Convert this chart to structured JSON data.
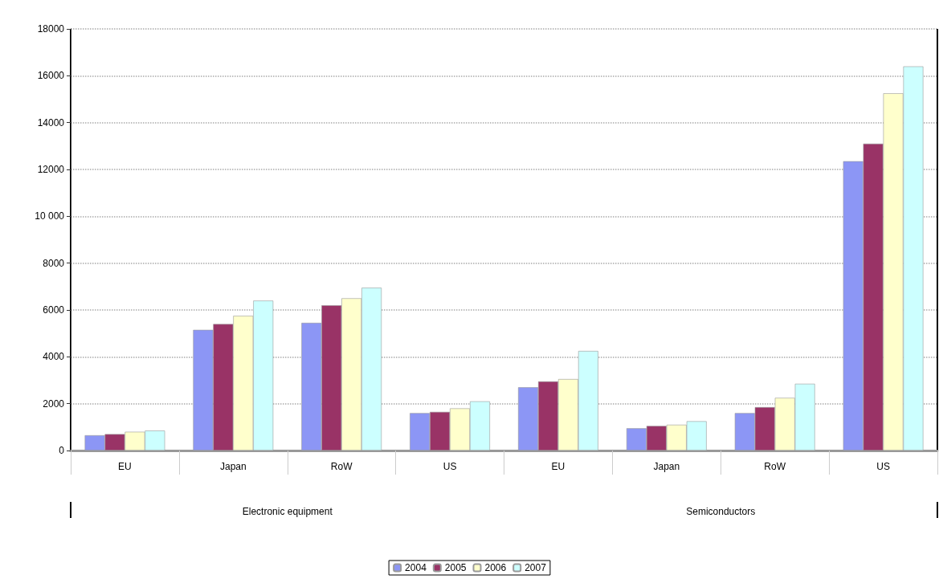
{
  "chart_data": {
    "type": "bar",
    "categories": [
      "EU",
      "Japan",
      "RoW",
      "US",
      "EU",
      "Japan",
      "RoW",
      "US"
    ],
    "annotations": [
      "Electronic equipment",
      "Semiconductors"
    ],
    "series": [
      {
        "name": "2004",
        "color": "#8c96f5",
        "values": [
          650,
          5150,
          5450,
          1600,
          2700,
          950,
          1600,
          12350
        ]
      },
      {
        "name": "2005",
        "color": "#993366",
        "values": [
          700,
          5400,
          6200,
          1650,
          2950,
          1050,
          1850,
          13100
        ]
      },
      {
        "name": "2006",
        "color": "#ffffcc",
        "values": [
          800,
          5750,
          6500,
          1800,
          3050,
          1100,
          2250,
          15250
        ]
      },
      {
        "name": "2007",
        "color": "#ccffff",
        "values": [
          850,
          6400,
          6950,
          2100,
          4250,
          1250,
          2850,
          16400
        ]
      }
    ],
    "ylim": [
      0,
      18000
    ],
    "yticks": [
      {
        "value": 0,
        "label": "0"
      },
      {
        "value": 2000,
        "label": "2000"
      },
      {
        "value": 4000,
        "label": "4000"
      },
      {
        "value": 6000,
        "label": "6000"
      },
      {
        "value": 8000,
        "label": "8000"
      },
      {
        "value": 10000,
        "label": "10 000"
      },
      {
        "value": 12000,
        "label": "12000"
      },
      {
        "value": 14000,
        "label": "14000"
      },
      {
        "value": 16000,
        "label": "16000"
      },
      {
        "value": 18000,
        "label": "18000"
      }
    ],
    "grid": "y",
    "legend": "bottom"
  }
}
